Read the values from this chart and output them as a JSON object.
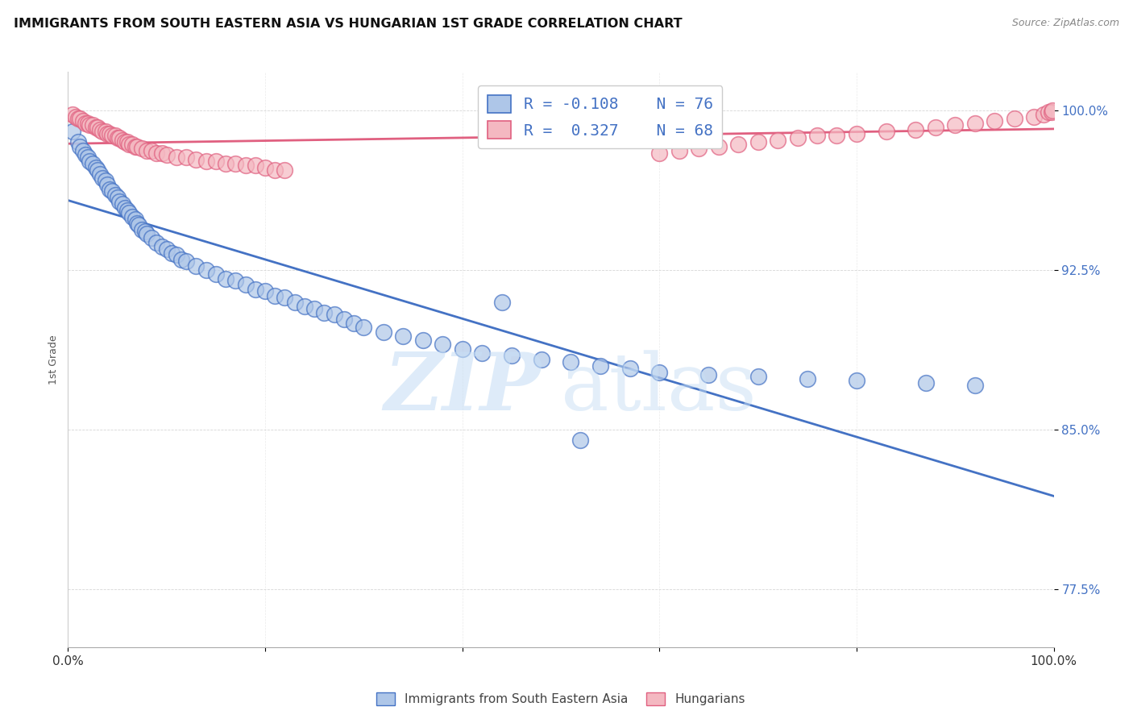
{
  "title": "IMMIGRANTS FROM SOUTH EASTERN ASIA VS HUNGARIAN 1ST GRADE CORRELATION CHART",
  "source": "Source: ZipAtlas.com",
  "ylabel": "1st Grade",
  "y_ticks": [
    0.775,
    0.85,
    0.925,
    1.0
  ],
  "y_tick_labels": [
    "77.5%",
    "85.0%",
    "92.5%",
    "100.0%"
  ],
  "xlim": [
    0.0,
    1.0
  ],
  "ylim": [
    0.748,
    1.018
  ],
  "legend_label1": "Immigrants from South Eastern Asia",
  "legend_label2": "Hungarians",
  "r1": -0.108,
  "n1": 76,
  "r2": 0.327,
  "n2": 68,
  "blue_color": "#aec6e8",
  "pink_color": "#f4b8c1",
  "line_blue": "#4472c4",
  "line_pink": "#e06080",
  "blue_x": [
    0.005,
    0.01,
    0.012,
    0.015,
    0.018,
    0.02,
    0.022,
    0.025,
    0.028,
    0.03,
    0.032,
    0.035,
    0.038,
    0.04,
    0.042,
    0.045,
    0.048,
    0.05,
    0.052,
    0.055,
    0.058,
    0.06,
    0.062,
    0.065,
    0.068,
    0.07,
    0.072,
    0.075,
    0.078,
    0.08,
    0.085,
    0.09,
    0.095,
    0.1,
    0.105,
    0.11,
    0.115,
    0.12,
    0.13,
    0.14,
    0.15,
    0.16,
    0.17,
    0.18,
    0.19,
    0.2,
    0.21,
    0.22,
    0.23,
    0.24,
    0.25,
    0.26,
    0.27,
    0.28,
    0.29,
    0.3,
    0.32,
    0.34,
    0.36,
    0.38,
    0.4,
    0.42,
    0.45,
    0.48,
    0.51,
    0.54,
    0.57,
    0.6,
    0.65,
    0.7,
    0.75,
    0.8,
    0.87,
    0.92,
    0.44,
    0.52
  ],
  "blue_y": [
    0.99,
    0.985,
    0.983,
    0.981,
    0.979,
    0.978,
    0.976,
    0.975,
    0.973,
    0.972,
    0.97,
    0.968,
    0.967,
    0.965,
    0.963,
    0.962,
    0.96,
    0.959,
    0.957,
    0.956,
    0.954,
    0.953,
    0.952,
    0.95,
    0.949,
    0.947,
    0.946,
    0.944,
    0.943,
    0.942,
    0.94,
    0.938,
    0.936,
    0.935,
    0.933,
    0.932,
    0.93,
    0.929,
    0.927,
    0.925,
    0.923,
    0.921,
    0.92,
    0.918,
    0.916,
    0.915,
    0.913,
    0.912,
    0.91,
    0.908,
    0.907,
    0.905,
    0.904,
    0.902,
    0.9,
    0.898,
    0.896,
    0.894,
    0.892,
    0.89,
    0.888,
    0.886,
    0.885,
    0.883,
    0.882,
    0.88,
    0.879,
    0.877,
    0.876,
    0.875,
    0.874,
    0.873,
    0.872,
    0.871,
    0.91,
    0.845
  ],
  "pink_x": [
    0.005,
    0.008,
    0.01,
    0.012,
    0.015,
    0.018,
    0.02,
    0.022,
    0.025,
    0.028,
    0.03,
    0.032,
    0.035,
    0.038,
    0.04,
    0.042,
    0.045,
    0.048,
    0.05,
    0.052,
    0.055,
    0.058,
    0.06,
    0.062,
    0.065,
    0.068,
    0.07,
    0.075,
    0.08,
    0.085,
    0.09,
    0.095,
    0.1,
    0.11,
    0.12,
    0.13,
    0.14,
    0.15,
    0.16,
    0.17,
    0.18,
    0.19,
    0.2,
    0.21,
    0.22,
    0.6,
    0.62,
    0.64,
    0.66,
    0.68,
    0.7,
    0.72,
    0.74,
    0.76,
    0.78,
    0.8,
    0.83,
    0.86,
    0.88,
    0.9,
    0.92,
    0.94,
    0.96,
    0.98,
    0.99,
    0.995,
    0.998,
    0.999
  ],
  "pink_y": [
    0.998,
    0.997,
    0.996,
    0.996,
    0.995,
    0.994,
    0.994,
    0.993,
    0.993,
    0.992,
    0.992,
    0.991,
    0.99,
    0.99,
    0.989,
    0.989,
    0.988,
    0.988,
    0.987,
    0.987,
    0.986,
    0.985,
    0.985,
    0.984,
    0.984,
    0.983,
    0.983,
    0.982,
    0.981,
    0.981,
    0.98,
    0.98,
    0.979,
    0.978,
    0.978,
    0.977,
    0.976,
    0.976,
    0.975,
    0.975,
    0.974,
    0.974,
    0.973,
    0.972,
    0.972,
    0.98,
    0.981,
    0.982,
    0.983,
    0.984,
    0.985,
    0.986,
    0.987,
    0.988,
    0.988,
    0.989,
    0.99,
    0.991,
    0.992,
    0.993,
    0.994,
    0.995,
    0.996,
    0.997,
    0.998,
    0.999,
    0.999,
    1.0
  ]
}
